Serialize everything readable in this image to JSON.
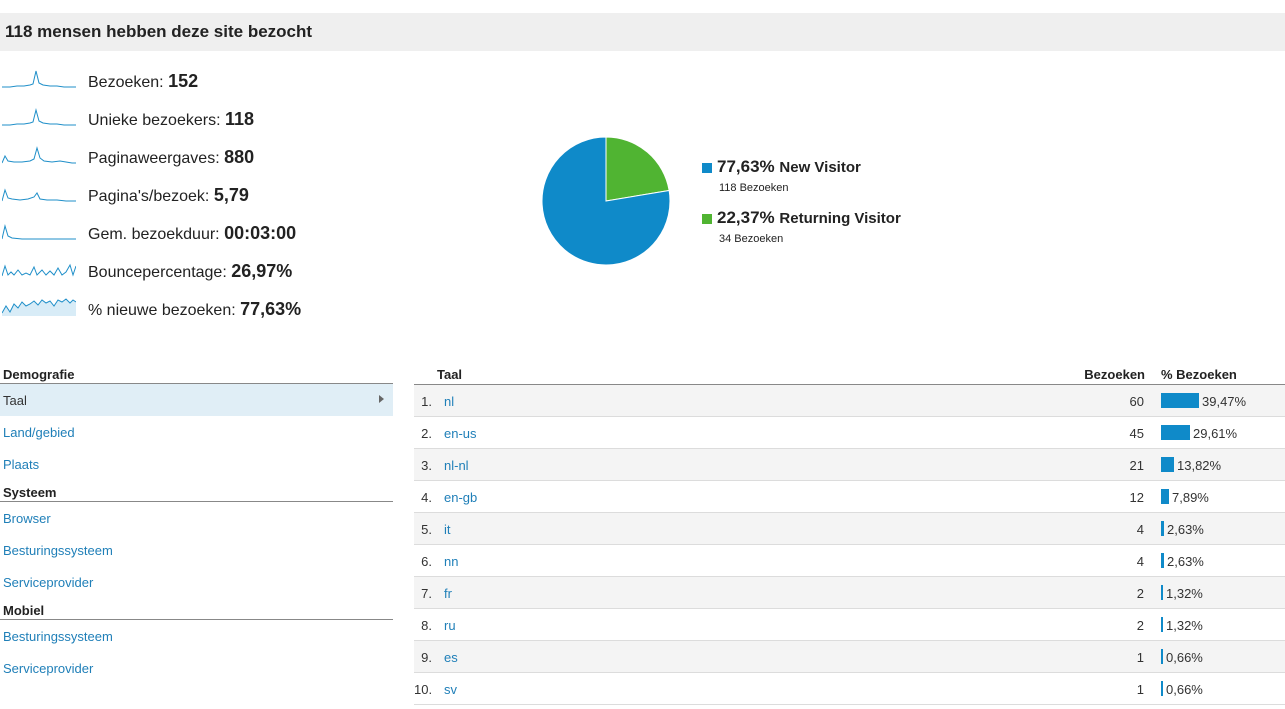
{
  "header": {
    "title": "118 mensen hebben deze site bezocht"
  },
  "metrics": [
    {
      "label": "Bezoeken: ",
      "value": "152"
    },
    {
      "label": "Unieke bezoekers: ",
      "value": "118"
    },
    {
      "label": "Paginaweergaves: ",
      "value": "880"
    },
    {
      "label": "Pagina's/bezoek: ",
      "value": "5,79"
    },
    {
      "label": "Gem. bezoekduur: ",
      "value": "00:03:00"
    },
    {
      "label": "Bouncepercentage: ",
      "value": "26,97%"
    },
    {
      "label": "% nieuwe bezoeken: ",
      "value": "77,63%"
    }
  ],
  "chart_data": {
    "type": "pie",
    "slices": [
      {
        "name": "New Visitor",
        "percent": 77.63,
        "percent_label": "77,63%",
        "visits_label": "118 Bezoeken",
        "color": "#0f8ac9"
      },
      {
        "name": "Returning Visitor",
        "percent": 22.37,
        "percent_label": "22,37%",
        "visits_label": "34 Bezoeken",
        "color": "#50b432"
      }
    ]
  },
  "leftnav": {
    "sections": [
      {
        "title": "Demografie",
        "items": [
          "Taal",
          "Land/gebied",
          "Plaats"
        ]
      },
      {
        "title": "Systeem",
        "items": [
          "Browser",
          "Besturingssysteem",
          "Serviceprovider"
        ]
      },
      {
        "title": "Mobiel",
        "items": [
          "Besturingssysteem",
          "Serviceprovider"
        ]
      }
    ],
    "active_item": "Taal"
  },
  "table": {
    "headers": {
      "taal": "Taal",
      "bezoeken": "Bezoeken",
      "pct": "% Bezoeken"
    },
    "rows": [
      {
        "idx": "1.",
        "lang": "nl",
        "visits": "60",
        "pct": "39,47%",
        "pct_value": 39.47
      },
      {
        "idx": "2.",
        "lang": "en-us",
        "visits": "45",
        "pct": "29,61%",
        "pct_value": 29.61
      },
      {
        "idx": "3.",
        "lang": "nl-nl",
        "visits": "21",
        "pct": "13,82%",
        "pct_value": 13.82
      },
      {
        "idx": "4.",
        "lang": "en-gb",
        "visits": "12",
        "pct": "7,89%",
        "pct_value": 7.89
      },
      {
        "idx": "5.",
        "lang": "it",
        "visits": "4",
        "pct": "2,63%",
        "pct_value": 2.63
      },
      {
        "idx": "6.",
        "lang": "nn",
        "visits": "4",
        "pct": "2,63%",
        "pct_value": 2.63
      },
      {
        "idx": "7.",
        "lang": "fr",
        "visits": "2",
        "pct": "1,32%",
        "pct_value": 1.32
      },
      {
        "idx": "8.",
        "lang": "ru",
        "visits": "2",
        "pct": "1,32%",
        "pct_value": 1.32
      },
      {
        "idx": "9.",
        "lang": "es",
        "visits": "1",
        "pct": "0,66%",
        "pct_value": 0.66
      },
      {
        "idx": "10.",
        "lang": "sv",
        "visits": "1",
        "pct": "0,66%",
        "pct_value": 0.66
      }
    ]
  }
}
